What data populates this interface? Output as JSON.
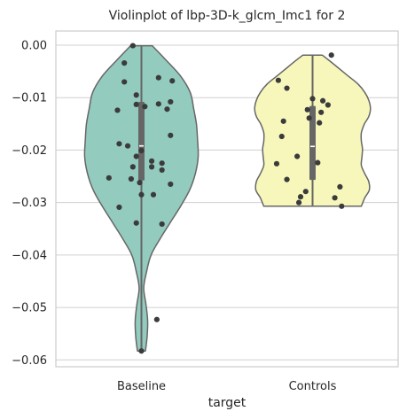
{
  "chart_data": {
    "type": "violin",
    "title": "Violinplot of lbp-3D-k_glcm_Imc1 for 2",
    "xlabel": "target",
    "ylabel": "",
    "categories": [
      "Baseline",
      "Controls"
    ],
    "ylim": [
      -0.0613,
      0.0027
    ],
    "yticks": [
      0.0,
      -0.01,
      -0.02,
      -0.03,
      -0.04,
      -0.05,
      -0.06
    ],
    "ytick_labels": [
      "0.00",
      "−0.01",
      "−0.02",
      "−0.03",
      "−0.04",
      "−0.05",
      "−0.06"
    ],
    "grid": "horizontal",
    "colors": {
      "Baseline": "#93cbbf",
      "Controls": "#f7f7bc",
      "violin_edge": "#666666",
      "box": "#666666",
      "median": "#ffffff",
      "point": "#3b3b3b",
      "grid": "#d0d0d0",
      "frame": "#cccccc"
    },
    "series": [
      {
        "category": "Baseline",
        "min": -0.0583,
        "q1": -0.0258,
        "median": -0.0192,
        "q3": -0.0108,
        "max": -0.0001,
        "density_profile": [
          [
            -0.0583,
            0.07
          ],
          [
            -0.0556,
            0.1
          ],
          [
            -0.0525,
            0.11
          ],
          [
            -0.0494,
            0.08
          ],
          [
            -0.0463,
            0.04
          ],
          [
            -0.0432,
            0.09
          ],
          [
            -0.04,
            0.17
          ],
          [
            -0.0369,
            0.33
          ],
          [
            -0.0338,
            0.51
          ],
          [
            -0.0307,
            0.69
          ],
          [
            -0.0276,
            0.85
          ],
          [
            -0.0245,
            0.95
          ],
          [
            -0.0213,
            1.0
          ],
          [
            -0.0183,
            0.99
          ],
          [
            -0.0151,
            0.97
          ],
          [
            -0.0121,
            0.92
          ],
          [
            -0.009,
            0.86
          ],
          [
            -0.0059,
            0.69
          ],
          [
            -0.0028,
            0.43
          ],
          [
            -0.0001,
            0.19
          ]
        ],
        "points": [
          [
            -0.05,
            -0.0001
          ],
          [
            -0.1,
            -0.0034
          ],
          [
            0.1,
            -0.0062
          ],
          [
            -0.1,
            -0.007
          ],
          [
            0.18,
            -0.0068
          ],
          [
            -0.03,
            -0.0095
          ],
          [
            0.17,
            -0.0108
          ],
          [
            0.1,
            -0.0112
          ],
          [
            -0.03,
            -0.0113
          ],
          [
            0.15,
            -0.0122
          ],
          [
            0.02,
            -0.0117
          ],
          [
            -0.14,
            -0.0124
          ],
          [
            0.17,
            -0.0172
          ],
          [
            -0.13,
            -0.0188
          ],
          [
            -0.08,
            -0.0192
          ],
          [
            0.0,
            -0.0201
          ],
          [
            -0.03,
            -0.0212
          ],
          [
            0.06,
            -0.0221
          ],
          [
            0.12,
            -0.0225
          ],
          [
            -0.05,
            -0.0232
          ],
          [
            0.06,
            -0.0232
          ],
          [
            0.12,
            -0.0238
          ],
          [
            -0.19,
            -0.0253
          ],
          [
            -0.06,
            -0.0255
          ],
          [
            -0.01,
            -0.0262
          ],
          [
            0.17,
            -0.0265
          ],
          [
            0.0,
            -0.0285
          ],
          [
            0.07,
            -0.0285
          ],
          [
            -0.13,
            -0.0309
          ],
          [
            -0.03,
            -0.0339
          ],
          [
            0.12,
            -0.0341
          ],
          [
            0.09,
            -0.0523
          ],
          [
            0.0,
            -0.0583
          ]
        ]
      },
      {
        "category": "Controls",
        "min": -0.0307,
        "q1": -0.0257,
        "median": -0.0193,
        "q3": -0.0116,
        "max": -0.0019,
        "density_profile": [
          [
            -0.0307,
            0.86
          ],
          [
            -0.0291,
            0.92
          ],
          [
            -0.0276,
            1.0
          ],
          [
            -0.026,
            0.99
          ],
          [
            -0.0245,
            0.92
          ],
          [
            -0.0229,
            0.86
          ],
          [
            -0.0213,
            0.87
          ],
          [
            -0.0198,
            0.88
          ],
          [
            -0.0183,
            0.86
          ],
          [
            -0.0167,
            0.86
          ],
          [
            -0.0151,
            0.91
          ],
          [
            -0.0136,
            0.99
          ],
          [
            -0.0121,
            1.02
          ],
          [
            -0.0105,
            0.99
          ],
          [
            -0.009,
            0.92
          ],
          [
            -0.0074,
            0.8
          ],
          [
            -0.0059,
            0.63
          ],
          [
            -0.0043,
            0.45
          ],
          [
            -0.0028,
            0.28
          ],
          [
            -0.0019,
            0.17
          ]
        ],
        "points": [
          [
            0.11,
            -0.0019
          ],
          [
            -0.2,
            -0.0067
          ],
          [
            -0.15,
            -0.0082
          ],
          [
            0.0,
            -0.0102
          ],
          [
            0.06,
            -0.0106
          ],
          [
            0.09,
            -0.0114
          ],
          [
            -0.03,
            -0.0123
          ],
          [
            0.05,
            -0.0128
          ],
          [
            -0.17,
            -0.0145
          ],
          [
            0.04,
            -0.0148
          ],
          [
            -0.02,
            -0.0139
          ],
          [
            -0.18,
            -0.0174
          ],
          [
            -0.09,
            -0.0212
          ],
          [
            -0.21,
            -0.0226
          ],
          [
            0.03,
            -0.0224
          ],
          [
            -0.15,
            -0.0256
          ],
          [
            0.16,
            -0.027
          ],
          [
            -0.04,
            -0.0279
          ],
          [
            -0.07,
            -0.0289
          ],
          [
            0.13,
            -0.0291
          ],
          [
            -0.08,
            -0.03
          ],
          [
            0.17,
            -0.0307
          ]
        ]
      }
    ]
  }
}
